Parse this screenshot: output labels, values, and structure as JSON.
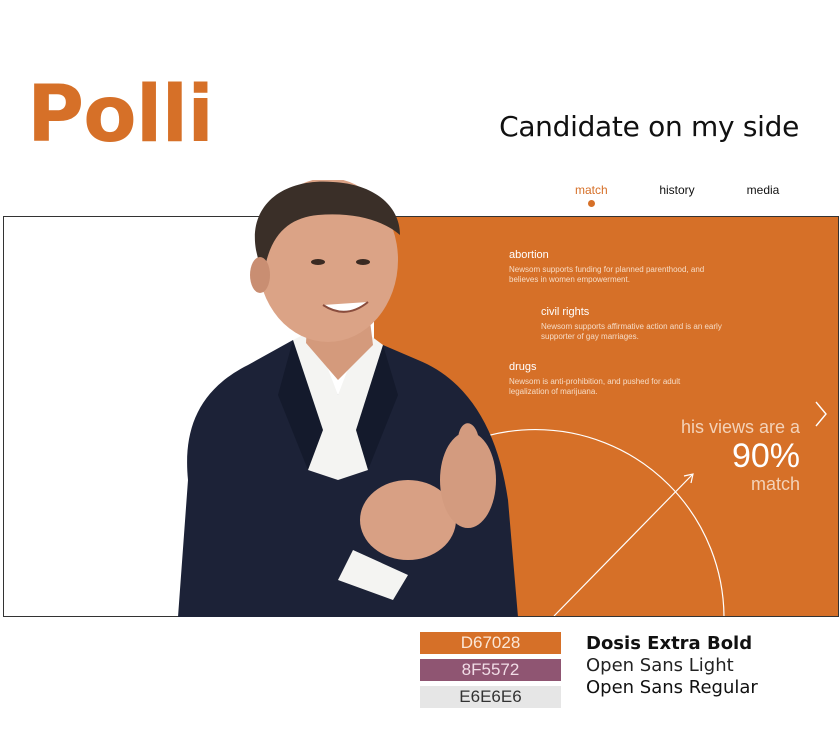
{
  "header": {
    "logo": "Polli",
    "tagline": "Candidate on my side"
  },
  "nav": {
    "items": [
      {
        "label": "match",
        "active": true
      },
      {
        "label": "history",
        "active": false
      },
      {
        "label": "media",
        "active": false
      }
    ]
  },
  "issues": [
    {
      "title": "abortion",
      "description": "Newsom supports funding for planned parenthood, and believes in women empowerment."
    },
    {
      "title": "civil rights",
      "description": "Newsom supports affirmative action and is an early supporter of gay marriages."
    },
    {
      "title": "drugs",
      "description": "Newsom is anti-prohibition, and pushed for adult legalization of marijuana."
    }
  ],
  "match": {
    "lead": "his views are a",
    "percent": "90%",
    "tail": "match",
    "value": 0.9
  },
  "palette": [
    {
      "hex": "D67028",
      "color": "#D67028",
      "text_color": "#FBE6D6"
    },
    {
      "hex": "8F5572",
      "color": "#8F5572",
      "text_color": "#F1DCE6"
    },
    {
      "hex": "E6E6E6",
      "color": "#E6E6E6",
      "text_color": "#333333"
    }
  ],
  "fonts": [
    "Dosis Extra Bold",
    "Open Sans Light",
    "Open Sans Regular"
  ],
  "icons": {
    "next": "chevron-right-icon",
    "pointer": "arrow-up-right-icon"
  }
}
